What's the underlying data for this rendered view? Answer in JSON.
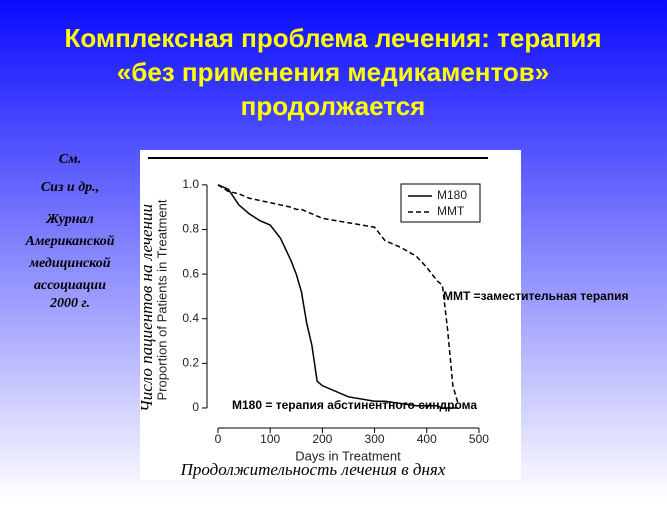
{
  "slide": {
    "title": [
      "Комплексная проблема лечения: терапия",
      "«без применения медикаментов»",
      "продолжается"
    ],
    "citation": [
      "См.",
      "Сиз и др.,",
      "Журнал",
      "Американской",
      "медицинской",
      "ассоциации",
      "2000 г."
    ]
  },
  "chart_data": {
    "type": "line",
    "ylabel": "Proportion of Patients in Treatment",
    "ylabel_overlay": "Число пациентов на лечении",
    "xlabel": "Days in Treatment",
    "xlabel_overlay": "Продолжительность лечения в днях",
    "x": [
      0,
      20,
      40,
      60,
      80,
      100,
      120,
      140,
      150,
      160,
      170,
      180,
      190,
      200,
      250,
      300,
      320,
      350,
      380,
      400,
      420,
      430,
      440,
      450,
      460
    ],
    "series": [
      {
        "name": "M180",
        "color": "#000000",
        "dash": false,
        "values": [
          1.0,
          0.98,
          0.91,
          0.87,
          0.84,
          0.82,
          0.76,
          0.66,
          0.6,
          0.52,
          0.38,
          0.28,
          0.12,
          0.1,
          0.05,
          0.03,
          0.03,
          0.02,
          0.01,
          0.01,
          0.01,
          0.0,
          0.0,
          0.0,
          0.0
        ]
      },
      {
        "name": "MMT",
        "color": "#000000",
        "dash": true,
        "values": [
          1.0,
          0.97,
          0.96,
          0.94,
          0.93,
          0.92,
          0.91,
          0.9,
          0.89,
          0.89,
          0.88,
          0.87,
          0.86,
          0.85,
          0.83,
          0.81,
          0.75,
          0.72,
          0.68,
          0.63,
          0.57,
          0.55,
          0.35,
          0.1,
          0.02
        ]
      }
    ],
    "xlim": [
      -30,
      525
    ],
    "ylim": [
      -0.07,
      1.08
    ],
    "xticks": [
      0,
      100,
      200,
      300,
      400,
      500
    ],
    "yticks": [
      0,
      0.2,
      0.4,
      0.6,
      0.8,
      {
        "value": 1,
        "label": "1.0"
      }
    ],
    "legend": "upper right",
    "annotations": [
      "MMT =заместительная терапия",
      "M180 = терапия абстинентного синдрома"
    ]
  }
}
